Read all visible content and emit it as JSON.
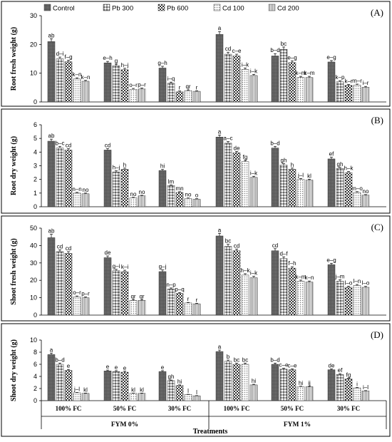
{
  "legend": [
    "Control",
    "Pb 300",
    "Pb 600",
    "Cd 100",
    "Cd 200"
  ],
  "patterns": [
    "p-control",
    "p-pb300",
    "p-pb600",
    "p-cd100",
    "p-cd200"
  ],
  "groups": [
    "100% FC",
    "50% FC",
    "30% FC",
    "100% FC",
    "50% FC",
    "30% FC"
  ],
  "fym": [
    "FYM 0%",
    "FYM 1%"
  ],
  "xlabel": "Treatments",
  "chart_data": [
    {
      "type": "bar",
      "panel": "(A)",
      "ylabel": "Root fresh weight (g)",
      "ylim": [
        0,
        30
      ],
      "yticks": [
        0,
        10,
        20,
        30
      ],
      "series": [
        {
          "name": "Control",
          "values": [
            21.0,
            13.6,
            11.8,
            23.5,
            16.0,
            13.9
          ],
          "errors": [
            1.0,
            0.5,
            0.6,
            1.0,
            0.8,
            0.5
          ]
        },
        {
          "name": "Pb 300",
          "values": [
            15.0,
            12.6,
            6.5,
            16.6,
            18.3,
            7.0
          ],
          "errors": [
            0.6,
            0.5,
            0.4,
            0.7,
            0.8,
            0.4
          ]
        },
        {
          "name": "Pb 600",
          "values": [
            14.0,
            11.2,
            3.5,
            16.0,
            13.7,
            5.8
          ],
          "errors": [
            0.5,
            0.5,
            0.3,
            0.6,
            0.6,
            0.3
          ]
        },
        {
          "name": "Cd 100",
          "values": [
            8.0,
            4.4,
            3.9,
            11.3,
            8.5,
            5.9
          ],
          "errors": [
            0.4,
            0.3,
            0.3,
            0.5,
            0.4,
            0.3
          ]
        },
        {
          "name": "Cd 200",
          "values": [
            7.2,
            4.5,
            3.7,
            9.2,
            8.5,
            5.1
          ],
          "errors": [
            0.3,
            0.3,
            0.2,
            0.4,
            0.4,
            0.3
          ]
        }
      ],
      "letters": [
        [
          "ab",
          "e–h",
          "g–h",
          "a",
          "b–d",
          "e–g"
        ],
        [
          "d–i",
          "g",
          "i–q",
          "cd",
          "bc",
          "k–p"
        ],
        [
          "f–g",
          "h–j",
          "r",
          "c–e",
          "e–g",
          "k–r"
        ],
        [
          "k–n",
          "o–r",
          "qr",
          "i–k",
          "k–m",
          "m–r"
        ],
        [
          "k–n",
          "p–r",
          "r",
          "i–k",
          "k–m",
          "i–r"
        ]
      ]
    },
    {
      "type": "bar",
      "panel": "(B)",
      "ylabel": "Root dry weight (g)",
      "ylim": [
        0,
        6
      ],
      "yticks": [
        0,
        1,
        2,
        3,
        4,
        5,
        6
      ],
      "series": [
        {
          "name": "Control",
          "values": [
            4.8,
            4.15,
            2.65,
            5.1,
            4.3,
            3.5
          ],
          "errors": [
            0.15,
            0.1,
            0.08,
            0.15,
            0.12,
            0.12
          ]
        },
        {
          "name": "Pb 300",
          "values": [
            4.3,
            2.55,
            1.55,
            4.65,
            3.05,
            2.8
          ],
          "errors": [
            0.12,
            0.08,
            0.05,
            0.12,
            0.1,
            0.08
          ]
        },
        {
          "name": "Pb 600",
          "values": [
            4.15,
            2.75,
            1.05,
            3.95,
            2.75,
            2.5
          ],
          "errors": [
            0.1,
            0.08,
            0.05,
            0.1,
            0.08,
            0.08
          ]
        },
        {
          "name": "Cd 100",
          "values": [
            1.0,
            0.65,
            0.6,
            3.3,
            2.0,
            1.05
          ],
          "errors": [
            0.05,
            0.04,
            0.04,
            0.1,
            0.06,
            0.05
          ]
        },
        {
          "name": "Cd 200",
          "values": [
            0.95,
            0.8,
            0.55,
            2.15,
            1.95,
            0.85
          ],
          "errors": [
            0.05,
            0.04,
            0.04,
            0.08,
            0.06,
            0.04
          ]
        }
      ],
      "letters": [
        [
          "ab",
          "cd",
          "hi",
          "a",
          "b–d",
          "ef"
        ],
        [
          "b–c",
          "h–j",
          "lm",
          "a–c",
          "gh",
          "gh"
        ],
        [
          "cd",
          "h",
          "mn",
          "de",
          "h",
          "h–k"
        ],
        [
          "n–n",
          "no",
          "no",
          "fg",
          "j–l",
          "m–o"
        ],
        [
          "no",
          "no",
          "o",
          "i–k",
          "kl",
          "no"
        ]
      ]
    },
    {
      "type": "bar",
      "panel": "(C)",
      "ylabel": "Shoot fresh weight (g)",
      "ylim": [
        0,
        50
      ],
      "yticks": [
        0,
        10,
        20,
        30,
        40,
        50
      ],
      "series": [
        {
          "name": "Control",
          "values": [
            44.5,
            33.0,
            25.0,
            45.5,
            37.0,
            29.0
          ],
          "errors": [
            2.0,
            1.0,
            1.0,
            1.5,
            1.2,
            0.8
          ]
        },
        {
          "name": "Pb 300",
          "values": [
            36.5,
            25.5,
            15.0,
            39.5,
            32.5,
            19.5
          ],
          "errors": [
            1.0,
            0.8,
            0.6,
            1.2,
            1.0,
            0.8
          ]
        },
        {
          "name": "Pb 600",
          "values": [
            35.5,
            25.0,
            12.5,
            37.0,
            27.0,
            16.0
          ],
          "errors": [
            1.0,
            0.8,
            0.5,
            1.0,
            0.8,
            0.6
          ]
        },
        {
          "name": "Cd 100",
          "values": [
            10.5,
            8.5,
            7.0,
            23.0,
            19.5,
            17.0
          ],
          "errors": [
            0.5,
            0.4,
            0.3,
            0.8,
            0.6,
            0.6
          ]
        },
        {
          "name": "Cd 200",
          "values": [
            10.0,
            8.5,
            6.5,
            21.5,
            19.0,
            16.0
          ],
          "errors": [
            0.4,
            0.4,
            0.3,
            0.8,
            0.6,
            0.5
          ]
        }
      ],
      "letters": [
        [
          "ab",
          "de",
          "g–j",
          "a",
          "cd",
          "e–g"
        ],
        [
          "cd",
          "g–i",
          "n–p",
          "bc",
          "d–f",
          "j–m"
        ],
        [
          "cd",
          "k–i",
          "p–q",
          "cd",
          "f–h",
          "l–o"
        ],
        [
          "o–r",
          "qr",
          "r",
          "h–k",
          "k–m",
          "l–n"
        ],
        [
          "p–r",
          "qr",
          "r",
          "i–k",
          "k–n",
          "l–o"
        ]
      ]
    },
    {
      "type": "bar",
      "panel": "(D)",
      "ylabel": "Shoot dry weight (g)",
      "ylim": [
        0,
        10
      ],
      "yticks": [
        0,
        2,
        4,
        6,
        8,
        10
      ],
      "series": [
        {
          "name": "Control",
          "values": [
            7.6,
            4.9,
            4.8,
            8.1,
            6.0,
            5.1
          ],
          "errors": [
            0.25,
            0.15,
            0.15,
            0.25,
            0.2,
            0.15
          ]
        },
        {
          "name": "Pb 300",
          "values": [
            6.0,
            4.8,
            3.3,
            6.5,
            5.2,
            4.3
          ],
          "errors": [
            0.2,
            0.15,
            0.1,
            0.2,
            0.15,
            0.15
          ]
        },
        {
          "name": "Pb 600",
          "values": [
            5.0,
            4.7,
            2.5,
            6.0,
            5.1,
            3.6
          ],
          "errors": [
            0.15,
            0.15,
            0.1,
            0.2,
            0.15,
            0.12
          ]
        },
        {
          "name": "Cd 100",
          "values": [
            1.3,
            1.2,
            1.0,
            6.0,
            2.3,
            2.1
          ],
          "errors": [
            0.05,
            0.05,
            0.05,
            0.2,
            0.08,
            0.08
          ]
        },
        {
          "name": "Cd 200",
          "values": [
            1.2,
            1.2,
            0.8,
            2.6,
            2.3,
            1.6
          ],
          "errors": [
            0.05,
            0.05,
            0.04,
            0.1,
            0.08,
            0.06
          ]
        }
      ],
      "letters": [
        [
          "a",
          "e",
          "e",
          "a",
          "b–d",
          "de"
        ],
        [
          "b–d",
          "e",
          "gh",
          "b",
          "c–e",
          "ef"
        ],
        [
          "e",
          "e",
          "hi",
          "bc",
          "c–e",
          "fg"
        ],
        [
          "j–l",
          "kl",
          "l",
          "bc",
          "hi",
          "i"
        ],
        [
          "kl",
          "kl",
          "l",
          "hi",
          "ij",
          "i–l"
        ]
      ]
    }
  ]
}
